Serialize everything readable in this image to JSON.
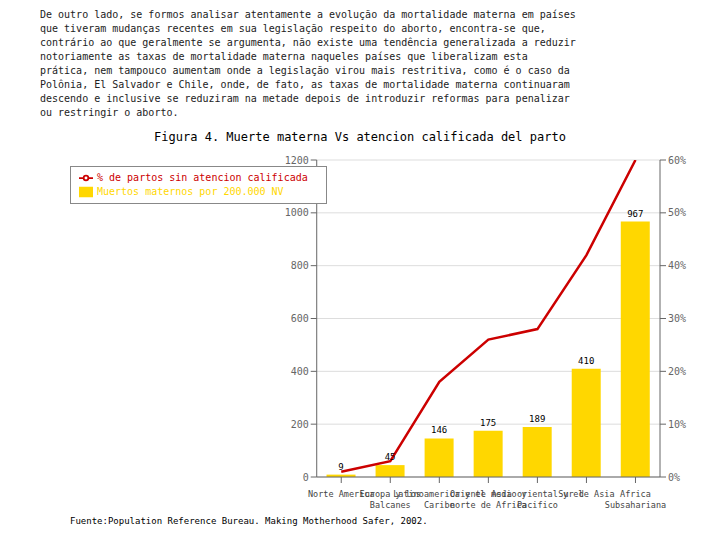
{
  "chart_data": {
    "type": "bar",
    "title": "Figura 4.  Muerte materna Vs atencion calificada del parto",
    "categories": [
      "Norte America",
      "Europa y los\nBalcanes",
      "Latinoamerica y el\nCaribe",
      "Oriente medio y\nnorte de Africa",
      "Asia oriental y el\nPacifico",
      "Sur de Asia",
      "Africa\nSubsahariana"
    ],
    "series": [
      {
        "name": "Muertos maternos por 200.000 NV",
        "type": "bar",
        "color": "#FFD700",
        "values": [
          9,
          45,
          146,
          175,
          189,
          410,
          967
        ],
        "data_labels": true
      },
      {
        "name": "% de partos sin atencion calificada",
        "type": "line",
        "color": "#CC0000",
        "axis": "y2",
        "values": [
          1,
          3,
          18,
          26,
          28,
          42,
          60
        ]
      }
    ],
    "ylim": [
      0,
      1200
    ],
    "yticks": [
      0,
      200,
      400,
      600,
      800,
      1000,
      1200
    ],
    "y2lim": [
      0,
      60
    ],
    "y2ticks": [
      {
        "value": 0,
        "label": "0%"
      },
      {
        "value": 10,
        "label": "10%"
      },
      {
        "value": 20,
        "label": "20%"
      },
      {
        "value": 30,
        "label": "30%"
      },
      {
        "value": 40,
        "label": "40%"
      },
      {
        "value": 50,
        "label": "50%"
      },
      {
        "value": 60,
        "label": "60%"
      }
    ],
    "grid": true,
    "legend": "upper left",
    "annotations": [
      "De outro lado, se formos analisar atentamente a evolução da mortalidade materna em países\nque tiveram mudanças recentes em sua legislação respeito do aborto, encontra-se que,\ncontrário ao que geralmente se argumenta, não existe uma tendência generalizada a reduzir\nnotoriamente as taxas de mortalidade materna naqueles países que liberalizam esta\nprática, nem tampouco aumentam onde a legislação virou mais restritiva, como é o caso da\nPolônia, El Salvador e Chile, onde, de fato, as taxas de mortalidade materna continuaram\ndescendo e inclusive se reduziram na metade depois de introduzir reformas para penalizar\nou restringir o aborto.",
      "Fuente:Population Reference Bureau. Making Motherhood Safer, 2002."
    ]
  }
}
